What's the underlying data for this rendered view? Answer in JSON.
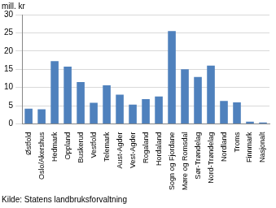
{
  "chart_data": {
    "type": "bar",
    "ylabel": "mill. kr",
    "annotation": "Kilde: Statens landbruksforvaltning",
    "categories": [
      "Østfold",
      "Oslo/Akershus",
      "Hedmark",
      "Oppland",
      "Buskerud",
      "Vestfold",
      "Telemark",
      "Aust-Agder",
      "Vest-Agder",
      "Rogaland",
      "Hordaland",
      "Sogn og Fjordane",
      "Møre og Romsdal",
      "Sør-Trøndelag",
      "Nord-Trøndelag",
      "Nordland",
      "Troms",
      "Finnmark",
      "Nasjonalt"
    ],
    "values": [
      4.2,
      4,
      17.2,
      15.7,
      11.5,
      5.8,
      10.6,
      8,
      5.3,
      6.8,
      7.5,
      25.5,
      15,
      12.9,
      16,
      6.3,
      5.9,
      0.6,
      0.4
    ],
    "color": "#4f81bd",
    "ylim": [
      0,
      30
    ],
    "yticks": [
      0,
      5,
      10,
      15,
      20,
      25,
      30
    ],
    "grid": true
  }
}
